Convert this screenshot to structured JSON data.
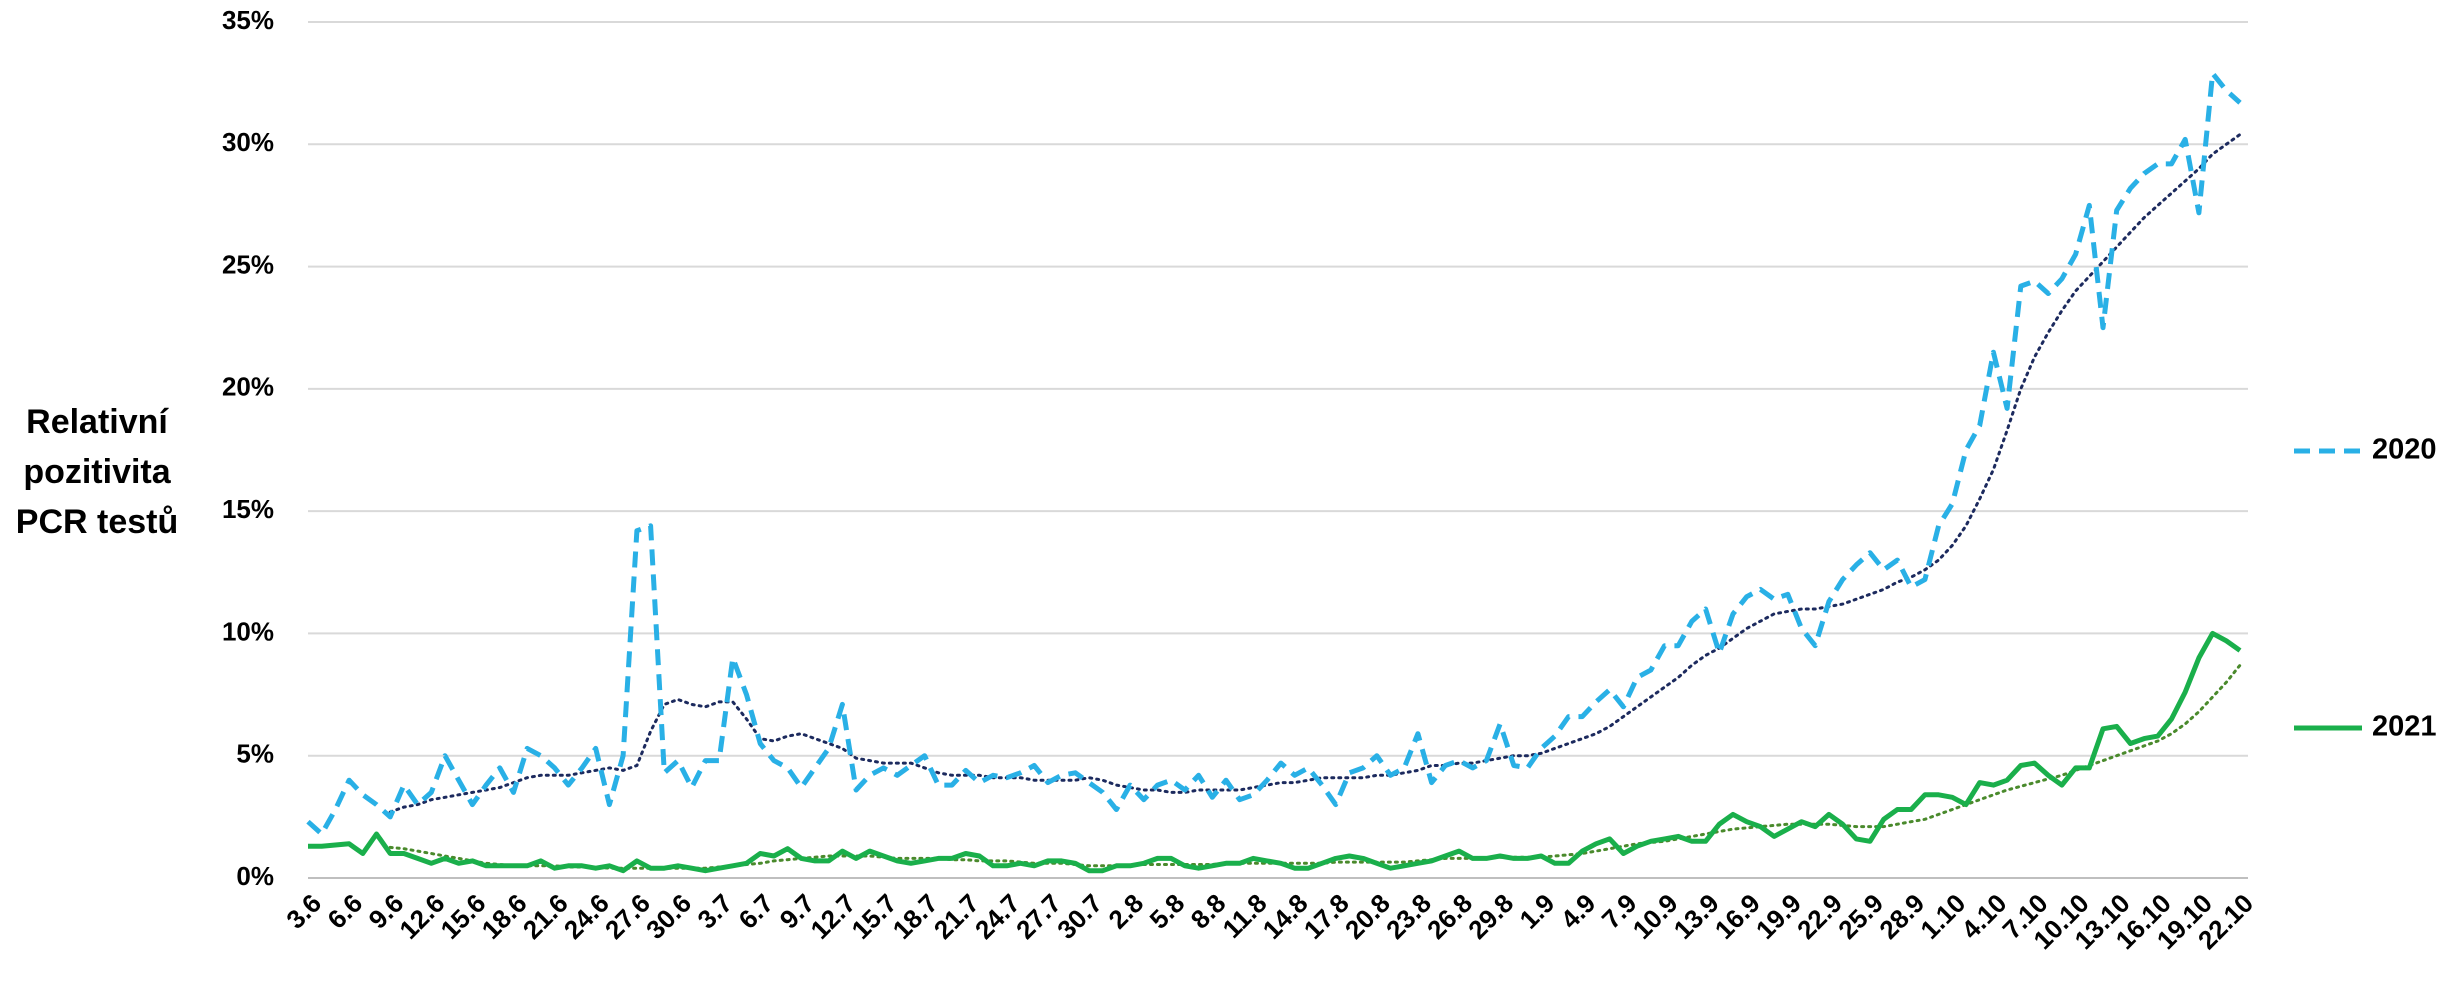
{
  "chart_data": {
    "type": "line",
    "ylabel": "Relativní pozitivita PCR testů",
    "categories": [
      "3.6",
      null,
      null,
      "6.6",
      null,
      null,
      "9.6",
      null,
      null,
      "12.6",
      null,
      null,
      "15.6",
      null,
      null,
      "18.6",
      null,
      null,
      "21.6",
      null,
      null,
      "24.6",
      null,
      null,
      "27.6",
      null,
      null,
      "30.6",
      null,
      null,
      "3.7",
      null,
      null,
      "6.7",
      null,
      null,
      "9.7",
      null,
      null,
      "12.7",
      null,
      null,
      "15.7",
      null,
      null,
      "18.7",
      null,
      null,
      "21.7",
      null,
      null,
      "24.7",
      null,
      null,
      "27.7",
      null,
      null,
      "30.7",
      null,
      null,
      "2.8",
      null,
      null,
      "5.8",
      null,
      null,
      "8.8",
      null,
      null,
      "11.8",
      null,
      null,
      "14.8",
      null,
      null,
      "17.8",
      null,
      null,
      "20.8",
      null,
      null,
      "23.8",
      null,
      null,
      "26.8",
      null,
      null,
      "29.8",
      null,
      null,
      "1.9",
      null,
      null,
      "4.9",
      null,
      null,
      "7.9",
      null,
      null,
      "10.9",
      null,
      null,
      "13.9",
      null,
      null,
      "16.9",
      null,
      null,
      "19.9",
      null,
      null,
      "22.9",
      null,
      null,
      "25.9",
      null,
      null,
      "28.9",
      null,
      null,
      "1.10",
      null,
      null,
      "4.10",
      null,
      null,
      "7.10",
      null,
      null,
      "10.10",
      null,
      null,
      "13.10",
      null,
      null,
      "16.10",
      null,
      null,
      "19.10",
      null,
      null,
      "22.10"
    ],
    "series": [
      {
        "name": "2020",
        "color": "#29b0e6",
        "dashed": true,
        "trend_color": "#1c2a5e",
        "values": [
          2.3,
          1.8,
          2.8,
          4.0,
          3.4,
          3.0,
          2.5,
          3.8,
          3.0,
          3.5,
          5.0,
          4.0,
          3.0,
          3.8,
          4.5,
          3.5,
          5.3,
          5.0,
          4.5,
          3.8,
          4.5,
          5.3,
          3.0,
          5.0,
          14.2,
          14.4,
          4.3,
          4.8,
          3.7,
          4.8,
          4.8,
          9.0,
          7.5,
          5.5,
          4.8,
          4.5,
          3.7,
          4.5,
          5.3,
          7.1,
          3.6,
          4.2,
          4.5,
          4.2,
          4.6,
          5.0,
          3.8,
          3.8,
          4.4,
          3.9,
          4.2,
          4.1,
          4.3,
          4.6,
          3.9,
          4.2,
          4.3,
          3.9,
          3.5,
          2.8,
          3.8,
          3.2,
          3.8,
          4.0,
          3.6,
          4.2,
          3.3,
          4.0,
          3.2,
          3.4,
          4.0,
          4.7,
          4.2,
          4.5,
          3.8,
          3.0,
          4.3,
          4.5,
          5.0,
          4.2,
          4.5,
          5.9,
          3.9,
          4.6,
          4.8,
          4.5,
          4.8,
          6.3,
          4.6,
          4.5,
          5.3,
          5.8,
          6.6,
          6.6,
          7.2,
          7.7,
          7.0,
          8.2,
          8.5,
          9.5,
          9.5,
          10.5,
          11.0,
          9.2,
          10.8,
          11.5,
          11.8,
          11.4,
          11.6,
          10.2,
          9.5,
          11.3,
          12.2,
          12.8,
          13.3,
          12.6,
          13.0,
          11.9,
          12.2,
          14.4,
          15.3,
          17.5,
          18.5,
          21.5,
          19.2,
          24.2,
          24.4,
          23.9,
          24.5,
          25.5,
          27.5,
          22.5,
          27.3,
          28.2,
          28.8,
          29.2,
          29.2,
          30.2,
          27.2,
          32.9,
          32.2,
          31.7
        ],
        "trend_values": [
          null,
          null,
          null,
          null,
          null,
          null,
          2.7,
          2.9,
          3.0,
          3.2,
          3.3,
          3.4,
          3.5,
          3.6,
          3.7,
          3.9,
          4.1,
          4.2,
          4.2,
          4.2,
          4.3,
          4.4,
          4.5,
          4.4,
          4.6,
          6.0,
          7.1,
          7.3,
          7.1,
          7.0,
          7.2,
          7.2,
          6.5,
          5.7,
          5.6,
          5.8,
          5.9,
          5.7,
          5.5,
          5.3,
          4.9,
          4.8,
          4.7,
          4.7,
          4.7,
          4.5,
          4.3,
          4.2,
          4.2,
          4.2,
          4.1,
          4.1,
          4.1,
          4.0,
          4.0,
          4.0,
          4.0,
          4.1,
          4.0,
          3.8,
          3.7,
          3.6,
          3.6,
          3.5,
          3.5,
          3.6,
          3.6,
          3.6,
          3.6,
          3.7,
          3.8,
          3.9,
          3.9,
          4.0,
          4.1,
          4.1,
          4.1,
          4.1,
          4.2,
          4.2,
          4.3,
          4.4,
          4.6,
          4.6,
          4.7,
          4.7,
          4.8,
          4.9,
          5.0,
          5.0,
          5.1,
          5.3,
          5.5,
          5.7,
          5.9,
          6.2,
          6.6,
          7.0,
          7.4,
          7.8,
          8.2,
          8.7,
          9.1,
          9.4,
          9.8,
          10.2,
          10.5,
          10.8,
          10.9,
          11.0,
          11.0,
          11.1,
          11.2,
          11.4,
          11.6,
          11.8,
          12.1,
          12.3,
          12.6,
          13.0,
          13.6,
          14.4,
          15.5,
          16.7,
          18.3,
          20.0,
          21.3,
          22.3,
          23.2,
          24.0,
          24.6,
          25.2,
          25.8,
          26.4,
          27.0,
          27.5,
          28.0,
          28.5,
          29.0,
          29.6,
          30.0,
          30.4
        ]
      },
      {
        "name": "2021",
        "color": "#1aaf4b",
        "dashed": false,
        "trend_color": "#4a8a2c",
        "values": [
          1.3,
          1.3,
          1.35,
          1.4,
          1.0,
          1.8,
          1.0,
          1.0,
          0.8,
          0.6,
          0.8,
          0.6,
          0.7,
          0.5,
          0.5,
          0.5,
          0.5,
          0.7,
          0.4,
          0.5,
          0.5,
          0.4,
          0.5,
          0.3,
          0.7,
          0.4,
          0.4,
          0.5,
          0.4,
          0.3,
          0.4,
          0.5,
          0.6,
          1.0,
          0.9,
          1.2,
          0.8,
          0.7,
          0.7,
          1.1,
          0.8,
          1.1,
          0.9,
          0.7,
          0.6,
          0.7,
          0.8,
          0.8,
          1.0,
          0.9,
          0.5,
          0.5,
          0.6,
          0.5,
          0.7,
          0.7,
          0.6,
          0.3,
          0.3,
          0.5,
          0.5,
          0.6,
          0.8,
          0.8,
          0.5,
          0.4,
          0.5,
          0.6,
          0.6,
          0.8,
          0.7,
          0.6,
          0.4,
          0.4,
          0.6,
          0.8,
          0.9,
          0.8,
          0.6,
          0.4,
          0.5,
          0.6,
          0.7,
          0.9,
          1.1,
          0.8,
          0.8,
          0.9,
          0.8,
          0.8,
          0.9,
          0.6,
          0.6,
          1.1,
          1.4,
          1.6,
          1.0,
          1.3,
          1.5,
          1.6,
          1.7,
          1.5,
          1.5,
          2.2,
          2.6,
          2.3,
          2.1,
          1.7,
          2.0,
          2.3,
          2.1,
          2.6,
          2.2,
          1.6,
          1.5,
          2.4,
          2.8,
          2.8,
          3.4,
          3.4,
          3.3,
          3.0,
          3.9,
          3.8,
          4.0,
          4.6,
          4.7,
          4.2,
          3.8,
          4.5,
          4.5,
          6.1,
          6.2,
          5.5,
          5.7,
          5.8,
          6.5,
          7.6,
          9.0,
          10.0,
          9.7,
          9.3
        ],
        "trend_values": [
          null,
          null,
          null,
          null,
          null,
          null,
          1.25,
          1.2,
          1.1,
          1.0,
          0.9,
          0.8,
          0.7,
          0.6,
          0.55,
          0.5,
          0.5,
          0.5,
          0.5,
          0.45,
          0.45,
          0.45,
          0.4,
          0.4,
          0.4,
          0.4,
          0.4,
          0.4,
          0.4,
          0.4,
          0.45,
          0.5,
          0.55,
          0.6,
          0.7,
          0.75,
          0.8,
          0.85,
          0.9,
          0.9,
          0.9,
          0.9,
          0.85,
          0.8,
          0.8,
          0.8,
          0.8,
          0.75,
          0.75,
          0.7,
          0.7,
          0.7,
          0.65,
          0.6,
          0.6,
          0.6,
          0.55,
          0.5,
          0.5,
          0.5,
          0.5,
          0.55,
          0.55,
          0.55,
          0.55,
          0.55,
          0.55,
          0.6,
          0.6,
          0.6,
          0.6,
          0.6,
          0.6,
          0.6,
          0.6,
          0.65,
          0.65,
          0.65,
          0.65,
          0.65,
          0.65,
          0.7,
          0.75,
          0.8,
          0.8,
          0.8,
          0.8,
          0.85,
          0.85,
          0.85,
          0.85,
          0.9,
          0.95,
          1.0,
          1.1,
          1.2,
          1.3,
          1.4,
          1.45,
          1.5,
          1.6,
          1.7,
          1.8,
          1.9,
          2.0,
          2.05,
          2.1,
          2.15,
          2.2,
          2.2,
          2.2,
          2.2,
          2.15,
          2.1,
          2.1,
          2.1,
          2.2,
          2.3,
          2.4,
          2.6,
          2.8,
          3.0,
          3.2,
          3.4,
          3.6,
          3.75,
          3.9,
          4.05,
          4.2,
          4.4,
          4.6,
          4.8,
          5.0,
          5.2,
          5.4,
          5.6,
          5.9,
          6.3,
          6.8,
          7.4,
          8.0,
          8.7
        ]
      }
    ],
    "ylim": [
      0,
      35
    ],
    "yticks": [
      {
        "value": 0,
        "label": "0%"
      },
      {
        "value": 5,
        "label": "5%"
      },
      {
        "value": 10,
        "label": "10%"
      },
      {
        "value": 15,
        "label": "15%"
      },
      {
        "value": 20,
        "label": "20%"
      },
      {
        "value": 25,
        "label": "25%"
      },
      {
        "value": 30,
        "label": "30%"
      },
      {
        "value": 35,
        "label": "35%"
      }
    ],
    "grid": true,
    "legend": "right"
  }
}
